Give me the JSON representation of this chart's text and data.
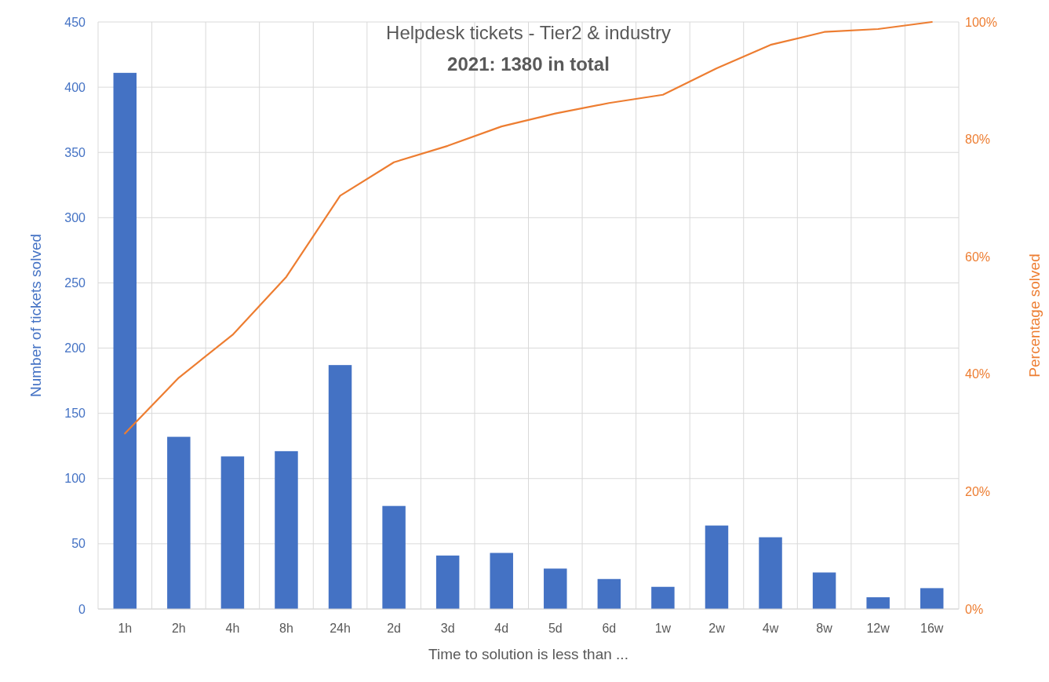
{
  "chart_data": {
    "type": "bar",
    "title": "Helpdesk tickets - Tier2 & industry",
    "subtitle": "2021: 1380 in total",
    "xlabel": "Time to solution is less than ...",
    "ylabel": "Number of tickets solved",
    "y2label": "Percentage solved",
    "categories": [
      "1h",
      "2h",
      "4h",
      "8h",
      "24h",
      "2d",
      "3d",
      "4d",
      "5d",
      "6d",
      "1w",
      "2w",
      "4w",
      "8w",
      "12w",
      "16w"
    ],
    "series": [
      {
        "color": "#4472c4",
        "values": [
          411,
          132,
          117,
          121,
          187,
          79,
          41,
          43,
          31,
          23,
          17,
          64,
          55,
          28,
          9,
          16
        ]
      },
      {
        "type": "line",
        "axis": "y2",
        "color": "#ed7d31",
        "values": [
          29.9,
          39.4,
          46.7,
          56.6,
          70.4,
          76.1,
          78.9,
          82.2,
          84.4,
          86.2,
          87.6,
          92.1,
          96.1,
          98.3,
          98.8,
          100
        ]
      }
    ],
    "ylim": [
      0,
      450
    ],
    "yticks": [
      0,
      50,
      100,
      150,
      200,
      250,
      300,
      350,
      400,
      450
    ],
    "y2lim": [
      0,
      100
    ],
    "y2ticks": [
      {
        "value": 0,
        "label": "0%"
      },
      {
        "value": 20,
        "label": "20%"
      },
      {
        "value": 40,
        "label": "40%"
      },
      {
        "value": 60,
        "label": "60%"
      },
      {
        "value": 80,
        "label": "80%"
      },
      {
        "value": 100,
        "label": "100%"
      }
    ],
    "grid": true
  }
}
